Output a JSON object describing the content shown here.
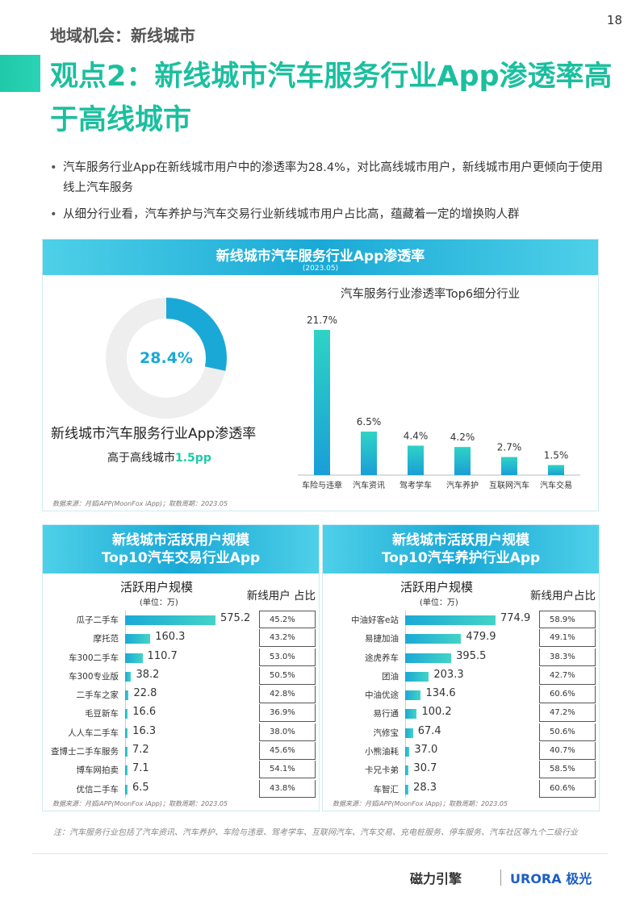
{
  "page_number": "18",
  "section_label": "地域机会：新线城市",
  "title": "观点2：新线城市汽车服务行业App渗透率高于高线城市",
  "bullets": [
    "汽车服务行业App在新线城市用户中的渗透率为28.4%，对比高线城市用户，新线城市用户更倾向于使用线上汽车服务",
    "从细分行业看，汽车养护与汽车交易行业新线城市用户占比高，蕴藏着一定的增换购人群"
  ],
  "top_card": {
    "title": "新线城市汽车服务行业App渗透率",
    "subtitle": "(2023.05)",
    "donut_value_text": "28.4%",
    "donut_label": "新线城市汽车服务行业App渗透率",
    "donut_sub_prefix": "高于高线城市",
    "donut_sub_highlight": "1.5pp",
    "bar_title": "汽车服务行业渗透率Top6细分行业",
    "source": "数据来源：月狐iAPP(MoonFox iApp)；取数周期：2023.05"
  },
  "left_card": {
    "title_line1": "新线城市活跃用户规模",
    "title_line2": "Top10汽车交易行业App",
    "col1_header": "活跃用户规模",
    "col1_unit": "(单位：万)",
    "col2_header": "新线用户 占比",
    "source": "数据来源：月狐iAPP(MoonFox iApp)；取数周期：2023.05"
  },
  "right_card": {
    "title_line1": "新线城市活跃用户规模",
    "title_line2": "Top10汽车养护行业App",
    "col1_header": "活跃用户规模",
    "col1_unit": "(单位：万)",
    "col2_header": "新线用户占比",
    "source": "数据来源：月狐iAPP(MoonFox iApp)；取数周期：2023.05"
  },
  "footnote": "注：汽车服务行业包括了汽车资讯、汽车养护、车险与违章、驾考学车、互联网汽车、汽车交易、充电桩服务、停车服务、汽车社区等九个二级行业",
  "logos": {
    "left": "磁力引擎",
    "right": "URORA 极光"
  },
  "colors": {
    "accent": "#1bbf9f",
    "blue": "#1aa9d6",
    "donut_track": "#eeeeee"
  },
  "chart_data": [
    {
      "type": "pie",
      "title": "新线城市汽车服务行业App渗透率",
      "values": [
        28.4,
        71.6
      ],
      "center_label": "28.4%"
    },
    {
      "type": "bar",
      "title": "汽车服务行业渗透率Top6细分行业",
      "categories": [
        "车险与违章",
        "汽车资讯",
        "驾考学车",
        "汽车养护",
        "互联网汽车",
        "汽车交易"
      ],
      "values": [
        21.7,
        6.5,
        4.4,
        4.2,
        2.7,
        1.5
      ],
      "value_labels": [
        "21.7%",
        "6.5%",
        "4.4%",
        "4.2%",
        "2.7%",
        "1.5%"
      ],
      "ylim": [
        0,
        21.7
      ]
    },
    {
      "type": "bar",
      "orientation": "horizontal",
      "title": "Top10汽车交易行业App",
      "categories": [
        "瓜子二手车",
        "摩托范",
        "车300二手车",
        "车300专业版",
        "二手车之家",
        "毛豆新车",
        "人人车二手车",
        "查博士二手车服务",
        "博车网拍卖",
        "优信二手车"
      ],
      "values": [
        575.2,
        160.3,
        110.7,
        38.2,
        22.8,
        16.6,
        16.3,
        7.2,
        7.1,
        6.5
      ],
      "value_labels": [
        "575.2",
        "160.3",
        "110.7",
        "38.2",
        "22.8",
        "16.6",
        "16.3",
        "7.2",
        "7.1",
        "6.5"
      ],
      "share_labels": [
        "45.2%",
        "43.2%",
        "53.0%",
        "50.5%",
        "42.8%",
        "36.9%",
        "38.0%",
        "45.6%",
        "54.1%",
        "43.8%"
      ]
    },
    {
      "type": "bar",
      "orientation": "horizontal",
      "title": "Top10汽车养护行业App",
      "categories": [
        "中油好客e站",
        "易捷加油",
        "途虎养车",
        "团油",
        "中油优途",
        "易行通",
        "汽修宝",
        "小熊油耗",
        "卡兄卡弟",
        "车智汇"
      ],
      "values": [
        774.9,
        479.9,
        395.5,
        203.3,
        134.6,
        100.2,
        67.4,
        37.0,
        30.7,
        28.3
      ],
      "value_labels": [
        "774.9",
        "479.9",
        "395.5",
        "203.3",
        "134.6",
        "100.2",
        "67.4",
        "37.0",
        "30.7",
        "28.3"
      ],
      "share_labels": [
        "58.9%",
        "49.1%",
        "38.3%",
        "42.7%",
        "60.6%",
        "47.2%",
        "50.6%",
        "40.7%",
        "58.5%",
        "60.6%"
      ]
    }
  ]
}
